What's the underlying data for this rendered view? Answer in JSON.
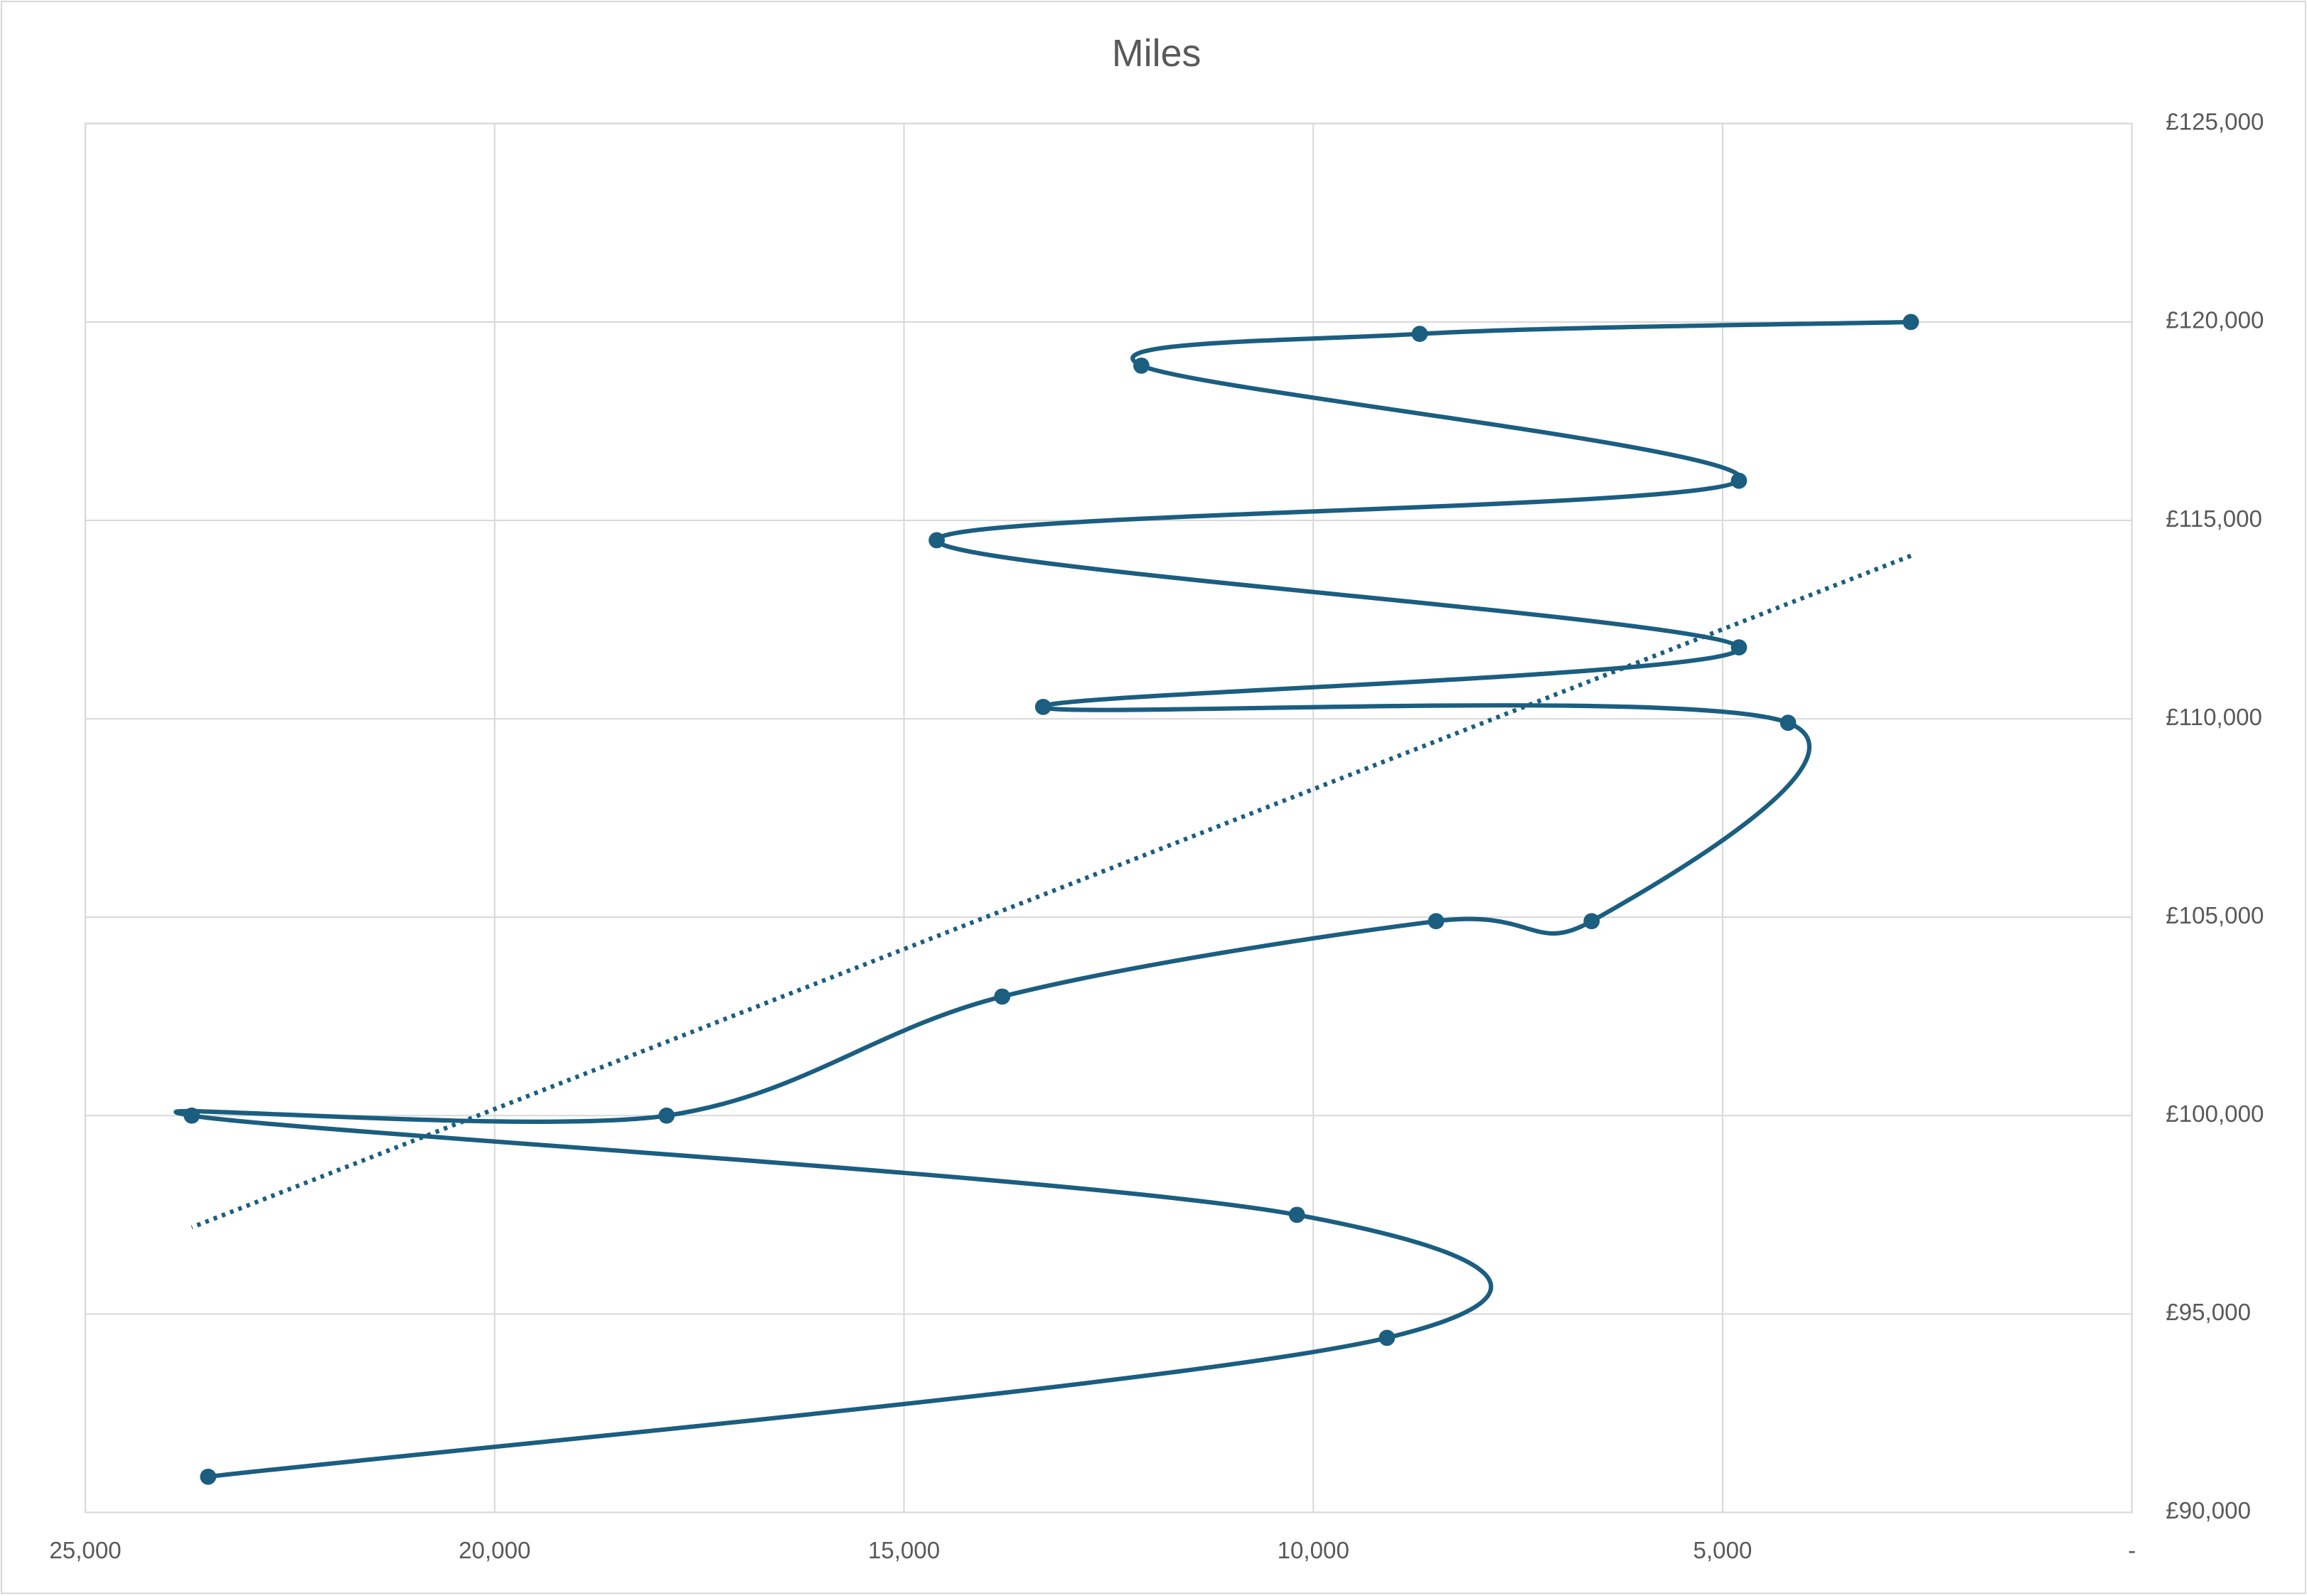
{
  "chart_data": {
    "type": "scatter-smooth",
    "title": "Miles",
    "series": [
      {
        "color": "#1b5e80",
        "x": [
          23500,
          9100,
          10200,
          23700,
          17900,
          13800,
          8500,
          6600,
          4200,
          13300,
          4800,
          14600,
          4800,
          12100,
          8700,
          2700
        ],
        "values": [
          90900,
          94400,
          97500,
          100000,
          100000,
          103000,
          104900,
          104900,
          109900,
          110300,
          111800,
          114500,
          116000,
          118900,
          119700,
          120000
        ]
      }
    ],
    "trendline": "linear",
    "xlim": [
      25000,
      0
    ],
    "xticks": [
      {
        "value": 25000,
        "label": "25,000"
      },
      {
        "value": 20000,
        "label": "20,000"
      },
      {
        "value": 15000,
        "label": "15,000"
      },
      {
        "value": 10000,
        "label": "10,000"
      },
      {
        "value": 5000,
        "label": "5,000"
      },
      {
        "value": 0,
        "label": "-"
      }
    ],
    "ylim": [
      90000,
      125000
    ],
    "yticks": [
      {
        "value": 90000,
        "label": "£90,000"
      },
      {
        "value": 95000,
        "label": "£95,000"
      },
      {
        "value": 100000,
        "label": "£100,000"
      },
      {
        "value": 105000,
        "label": "£105,000"
      },
      {
        "value": 110000,
        "label": "£110,000"
      },
      {
        "value": 115000,
        "label": "£115,000"
      },
      {
        "value": 120000,
        "label": "£120,000"
      },
      {
        "value": 125000,
        "label": "£125,000"
      }
    ],
    "y_axis_position": "right",
    "grid": true
  }
}
